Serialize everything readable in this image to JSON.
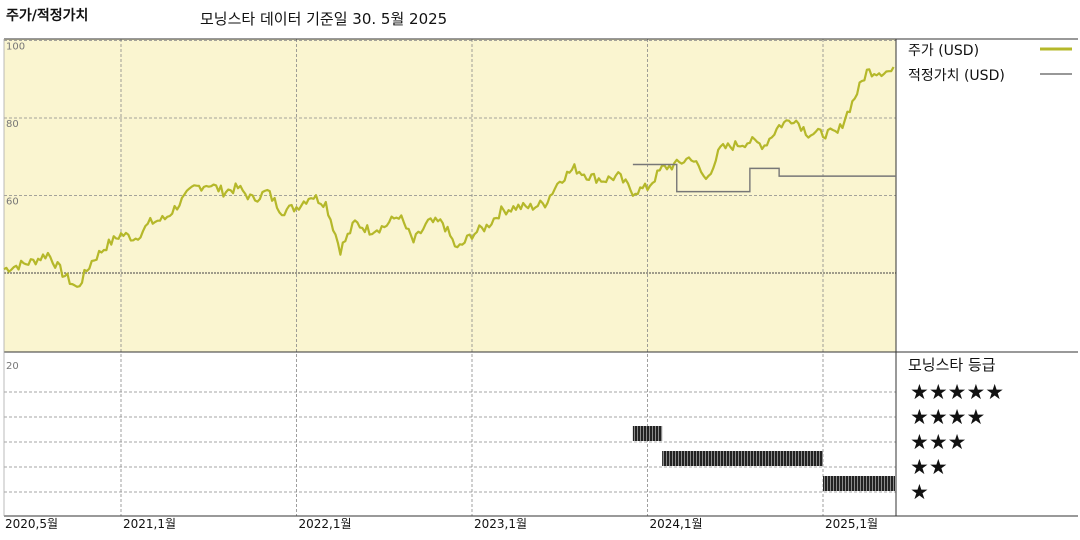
{
  "header": {
    "title": "주가/적정가치",
    "subtitle": "모닝스타 데이터 기준일 30. 5월 2025"
  },
  "colors": {
    "price": "#b5b82a",
    "fair_value": "#777777",
    "upper_bg": "#faf5d0",
    "grid": "#888888"
  },
  "chart_data": [
    {
      "type": "line",
      "title": "주가/적정가치",
      "x_range": [
        "2020-05",
        "2025-06"
      ],
      "ylim": [
        20,
        100
      ],
      "yticks": [
        20,
        60,
        80,
        100
      ],
      "grid": true,
      "legend_position": "right",
      "series": [
        {
          "name": "주가 (USD)",
          "x": [
            "2020-05",
            "2020-06",
            "2020-07",
            "2020-08",
            "2020-09",
            "2020-10",
            "2020-11",
            "2020-12",
            "2021-01",
            "2021-02",
            "2021-03",
            "2021-04",
            "2021-05",
            "2021-06",
            "2021-07",
            "2021-08",
            "2021-09",
            "2021-10",
            "2021-11",
            "2021-12",
            "2022-01",
            "2022-02",
            "2022-03",
            "2022-04",
            "2022-05",
            "2022-06",
            "2022-07",
            "2022-08",
            "2022-09",
            "2022-10",
            "2022-11",
            "2022-12",
            "2023-01",
            "2023-02",
            "2023-03",
            "2023-04",
            "2023-05",
            "2023-06",
            "2023-07",
            "2023-08",
            "2023-09",
            "2023-10",
            "2023-11",
            "2023-12",
            "2024-01",
            "2024-02",
            "2024-03",
            "2024-04",
            "2024-05",
            "2024-06",
            "2024-07",
            "2024-08",
            "2024-09",
            "2024-10",
            "2024-11",
            "2024-12",
            "2025-01",
            "2025-02",
            "2025-03",
            "2025-04",
            "2025-05"
          ],
          "y": [
            41,
            42,
            43,
            45,
            40,
            36,
            43,
            47,
            50,
            49,
            53,
            54,
            58,
            62,
            63,
            61,
            62,
            59,
            61,
            56,
            57,
            60,
            58,
            46,
            53,
            51,
            52,
            55,
            48,
            53,
            53,
            46,
            50,
            52,
            56,
            57,
            57,
            58,
            64,
            67,
            65,
            64,
            65,
            61,
            62,
            67,
            68,
            70,
            64,
            72,
            73,
            74,
            73,
            78,
            80,
            76,
            76,
            76,
            84,
            92,
            92
          ]
        },
        {
          "name": "적정가치 (USD)",
          "x": [
            "2023-12",
            "2024-01",
            "2024-02",
            "2024-03",
            "2024-04",
            "2024-05",
            "2024-06",
            "2024-07",
            "2024-08",
            "2024-09",
            "2024-10",
            "2024-11",
            "2024-12",
            "2025-01",
            "2025-02",
            "2025-03",
            "2025-04",
            "2025-05"
          ],
          "y": [
            68,
            68,
            68,
            61,
            61,
            61,
            61,
            61,
            67,
            67,
            65,
            65,
            65,
            65,
            65,
            65,
            65,
            65
          ]
        }
      ]
    },
    {
      "type": "timeline",
      "title": "모닝스타 등급",
      "levels": [
        "★★★★★",
        "★★★★",
        "★★★",
        "★★",
        "★"
      ],
      "periods": [
        {
          "rating": 3,
          "start": "2023-12",
          "end": "2024-02"
        },
        {
          "rating": 2,
          "start": "2024-02",
          "end": "2025-01"
        },
        {
          "rating": 1,
          "start": "2025-01",
          "end": "2025-05"
        }
      ]
    }
  ],
  "axis": {
    "x_labels": [
      "2020,5월",
      "2021,1월",
      "2022,1월",
      "2023,1월",
      "2024,1월",
      "2025,1월"
    ],
    "x_label_dates": [
      "2020-05",
      "2021-01",
      "2022-01",
      "2023-01",
      "2024-01",
      "2025-01"
    ],
    "y_labels": [
      "100",
      "80",
      "60",
      "20"
    ]
  },
  "legend": {
    "price_label": "주가 (USD)",
    "fair_label": "적정가치 (USD)",
    "rating_title": "모닝스타 등급"
  }
}
